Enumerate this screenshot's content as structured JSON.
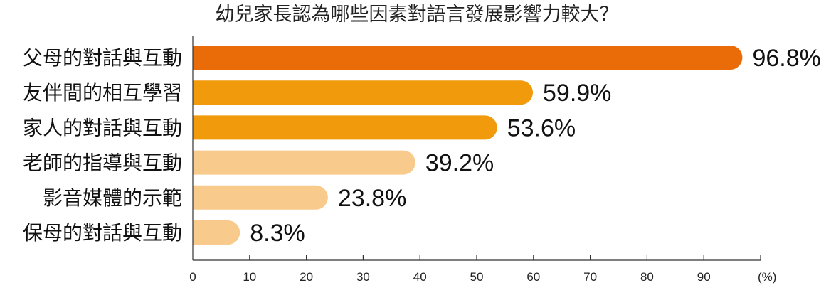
{
  "chart_data": {
    "type": "bar",
    "orientation": "horizontal",
    "title": "幼兒家長認為哪些因素對語言發展影響力較大？",
    "categories": [
      "父母的對話與互動",
      "友伴間的相互學習",
      "家人的對話與互動",
      "老師的指導與互動",
      "影音媒體的示範",
      "保母的對話與互動"
    ],
    "values": [
      96.8,
      59.9,
      53.6,
      39.2,
      23.8,
      8.3
    ],
    "value_labels": [
      "96.8%",
      "59.9%",
      "53.6%",
      "39.2%",
      "23.8%",
      "8.3%"
    ],
    "bar_colors": [
      "#ea6c08",
      "#f09a0c",
      "#f09a0c",
      "#f8ca8c",
      "#f8ca8c",
      "#f8ca8c"
    ],
    "x_ticks": [
      "0",
      "10",
      "20",
      "30",
      "40",
      "50",
      "60",
      "70",
      "80",
      "90"
    ],
    "x_unit": "(%)",
    "xlim": [
      0,
      100
    ],
    "grid": false,
    "legend": "none"
  }
}
